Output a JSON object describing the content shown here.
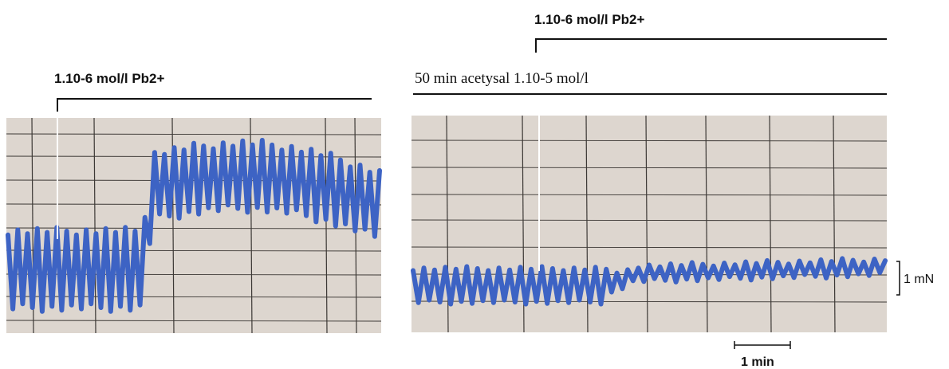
{
  "colors": {
    "paper": "#ddd6cf",
    "paper_shade": "#c9c2bb",
    "grid": "#3c3835",
    "ink": "#3d63c4",
    "ink_dark": "#2a4aa8",
    "text": "#111111"
  },
  "chart_data": [
    {
      "type": "line",
      "panel": "left",
      "annotations": [
        {
          "id": "pb-left",
          "text": "1.10-6 mol/l Pb2+"
        }
      ],
      "series": [
        {
          "trace": "contraction-force",
          "baseline_mN": 0.0,
          "oscillation_amplitude_mN": 1.2,
          "level_after_pb_mN": 1.3,
          "trend_end_mN": 1.0,
          "cycles": 38
        }
      ]
    },
    {
      "type": "line",
      "panel": "right",
      "annotations": [
        {
          "id": "acetysal",
          "text": "50 min acetysal 1.10-5 mol/l"
        },
        {
          "id": "pb-right",
          "text": "1.10-6 mol/l Pb2+"
        }
      ],
      "series": [
        {
          "trace": "contraction-force",
          "baseline_mN": 0.0,
          "oscillation_amplitude_mN": 1.0,
          "level_after_pb_mN": 0.35,
          "trend_end_mN": 0.55,
          "cycles": 44
        }
      ],
      "scale_bars": {
        "force": {
          "value": 1,
          "unit": "mN",
          "label": "1 mN"
        },
        "time": {
          "value": 1,
          "unit": "min",
          "label": "1 min"
        }
      }
    }
  ]
}
